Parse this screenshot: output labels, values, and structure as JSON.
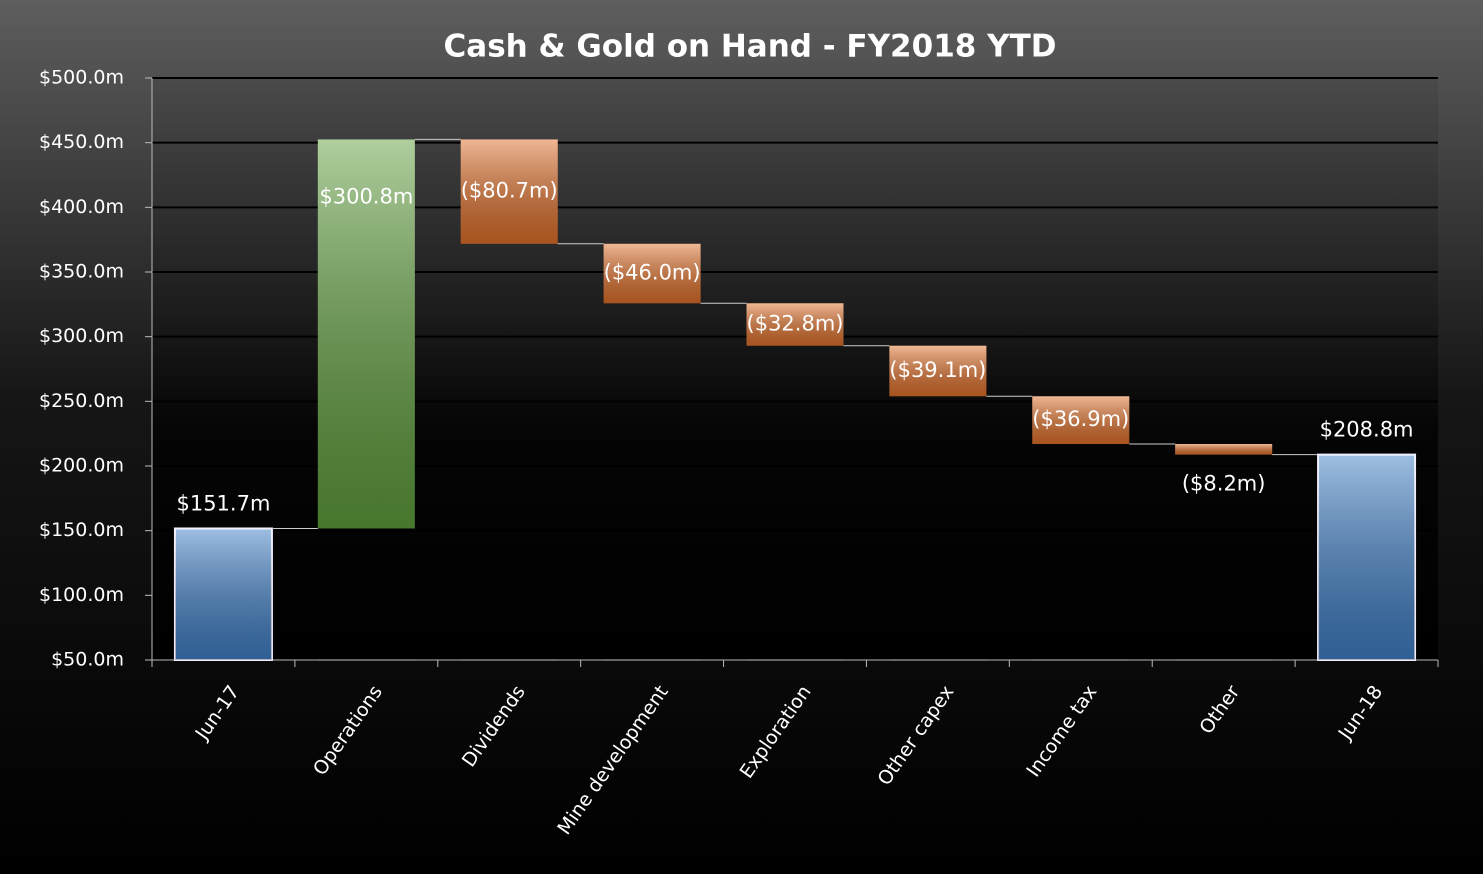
{
  "chart_data": {
    "type": "waterfall",
    "title": "Cash & Gold on Hand - FY2018 YTD",
    "categories": [
      "Jun-17",
      "Operations",
      "Dividends",
      "Mine development",
      "Exploration",
      "Other capex",
      "Income tax",
      "Other",
      "Jun-18"
    ],
    "values": [
      151.7,
      300.8,
      -80.7,
      -46.0,
      -32.8,
      -39.1,
      -36.9,
      -8.2,
      208.8
    ],
    "value_labels": [
      "$151.7m",
      "$300.8m",
      "($80.7m)",
      "($46.0m)",
      "($32.8m)",
      "($39.1m)",
      "($36.9m)",
      "($8.2m)",
      "$208.8m"
    ],
    "measure": [
      "absolute",
      "relative",
      "relative",
      "relative",
      "relative",
      "relative",
      "relative",
      "relative",
      "total"
    ],
    "colors": [
      "#3f7fc6",
      "#5f9e3c",
      "#e0702a",
      "#e0702a",
      "#e0702a",
      "#e0702a",
      "#e0702a",
      "#e0702a",
      "#3f7fc6"
    ],
    "ylim": [
      50,
      500
    ],
    "yticks": [
      {
        "value": 50,
        "label": "$50.0m"
      },
      {
        "value": 100,
        "label": "$100.0m"
      },
      {
        "value": 150,
        "label": "$150.0m"
      },
      {
        "value": 200,
        "label": "$200.0m"
      },
      {
        "value": 250,
        "label": "$250.0m"
      },
      {
        "value": 300,
        "label": "$300.0m"
      },
      {
        "value": 350,
        "label": "$350.0m"
      },
      {
        "value": 400,
        "label": "$400.0m"
      },
      {
        "value": 450,
        "label": "$450.0m"
      },
      {
        "value": 500,
        "label": "$500.0m"
      }
    ],
    "grid": true
  }
}
